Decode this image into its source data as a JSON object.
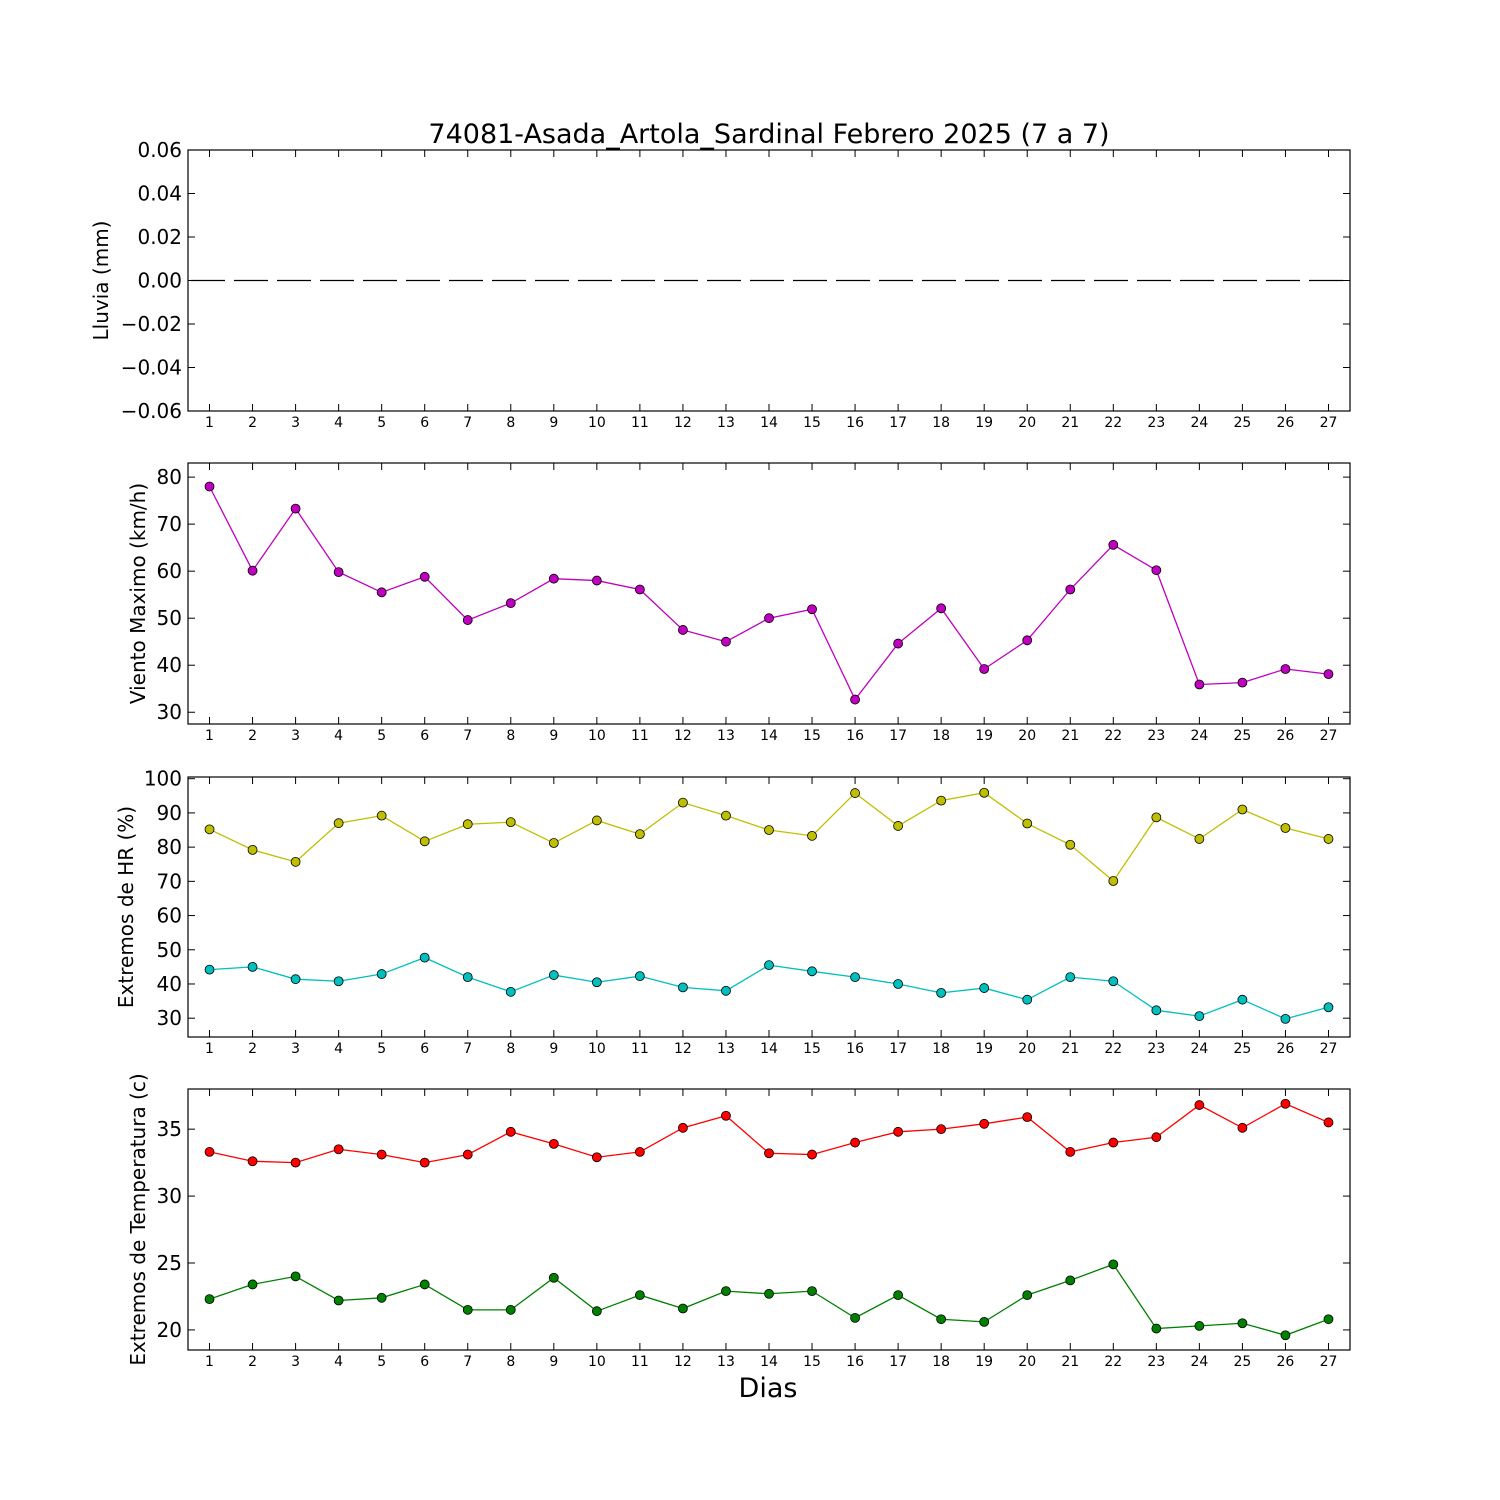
{
  "chart_data": [
    {
      "type": "line",
      "title": "74081-Asada_Artola_Sardinal Febrero 2025  (7 a 7)",
      "ylabel": "Lluvia (mm)",
      "xlabel": "",
      "x": [
        1,
        2,
        3,
        4,
        5,
        6,
        7,
        8,
        9,
        10,
        11,
        12,
        13,
        14,
        15,
        16,
        17,
        18,
        19,
        20,
        21,
        22,
        23,
        24,
        25,
        26,
        27
      ],
      "xlim": [
        0.5,
        27.5
      ],
      "ylim": [
        -0.06,
        0.06
      ],
      "yticks": [
        -0.06,
        -0.04,
        -0.02,
        0.0,
        0.02,
        0.04,
        0.06
      ],
      "ytick_labels": [
        "−0.06",
        "−0.04",
        "−0.02",
        "0.00",
        "0.02",
        "0.04",
        "0.06"
      ],
      "series": [
        {
          "style": "dashed",
          "color": "#000000",
          "values": [
            0,
            0,
            0,
            0,
            0,
            0,
            0,
            0,
            0,
            0,
            0,
            0,
            0,
            0,
            0,
            0,
            0,
            0,
            0,
            0,
            0,
            0,
            0,
            0,
            0,
            0,
            0
          ]
        }
      ]
    },
    {
      "type": "line",
      "title": "",
      "ylabel": "Viento Maximo (km/h)",
      "xlabel": "",
      "x": [
        1,
        2,
        3,
        4,
        5,
        6,
        7,
        8,
        9,
        10,
        11,
        12,
        13,
        14,
        15,
        16,
        17,
        18,
        19,
        20,
        21,
        22,
        23,
        24,
        25,
        26,
        27
      ],
      "xlim": [
        0.5,
        27.5
      ],
      "ylim": [
        27.5,
        83
      ],
      "yticks": [
        30,
        40,
        50,
        60,
        70,
        80
      ],
      "ytick_labels": [
        "30",
        "40",
        "50",
        "60",
        "70",
        "80"
      ],
      "series": [
        {
          "color": "#bf00bf",
          "marker": "circle",
          "values": [
            78.0,
            60.1,
            73.3,
            59.8,
            55.5,
            58.8,
            49.6,
            53.2,
            58.4,
            58.0,
            56.1,
            47.5,
            45.0,
            50.0,
            51.9,
            32.7,
            44.6,
            52.1,
            39.2,
            45.3,
            56.1,
            65.6,
            60.2,
            35.9,
            36.3,
            39.2,
            38.1
          ]
        }
      ]
    },
    {
      "type": "line",
      "title": "",
      "ylabel": "Extremos de HR (%)",
      "xlabel": "",
      "x": [
        1,
        2,
        3,
        4,
        5,
        6,
        7,
        8,
        9,
        10,
        11,
        12,
        13,
        14,
        15,
        16,
        17,
        18,
        19,
        20,
        21,
        22,
        23,
        24,
        25,
        26,
        27
      ],
      "xlim": [
        0.5,
        27.5
      ],
      "ylim": [
        24.5,
        100.5
      ],
      "yticks": [
        30,
        40,
        50,
        60,
        70,
        80,
        90,
        100
      ],
      "ytick_labels": [
        "30",
        "40",
        "50",
        "60",
        "70",
        "80",
        "90",
        "100"
      ],
      "series": [
        {
          "color": "#bfbf00",
          "marker": "circle",
          "values": [
            85.2,
            79.2,
            75.7,
            87.0,
            89.2,
            81.7,
            86.7,
            87.3,
            81.2,
            87.8,
            83.8,
            93.0,
            89.2,
            85.0,
            83.3,
            95.8,
            86.2,
            93.6,
            95.9,
            86.9,
            80.7,
            70.1,
            88.7,
            82.4,
            91.0,
            85.6,
            82.4
          ]
        },
        {
          "color": "#00bfbf",
          "marker": "circle",
          "values": [
            44.2,
            45.0,
            41.4,
            40.8,
            42.9,
            47.7,
            42.0,
            37.7,
            42.6,
            40.5,
            42.3,
            39.0,
            38.0,
            45.5,
            43.7,
            42.0,
            40.0,
            37.4,
            38.8,
            35.4,
            42.0,
            40.8,
            32.3,
            30.6,
            35.4,
            29.8,
            33.2
          ]
        }
      ]
    },
    {
      "type": "line",
      "title": "",
      "ylabel": "Extremos de Temperatura (c)",
      "xlabel": "Dias",
      "x": [
        1,
        2,
        3,
        4,
        5,
        6,
        7,
        8,
        9,
        10,
        11,
        12,
        13,
        14,
        15,
        16,
        17,
        18,
        19,
        20,
        21,
        22,
        23,
        24,
        25,
        26,
        27
      ],
      "xlim": [
        0.5,
        27.5
      ],
      "ylim": [
        18.5,
        38
      ],
      "yticks": [
        20,
        25,
        30,
        35
      ],
      "ytick_labels": [
        "20",
        "25",
        "30",
        "35"
      ],
      "series": [
        {
          "color": "#ff0000",
          "marker": "circle",
          "values": [
            33.3,
            32.6,
            32.5,
            33.5,
            33.1,
            32.5,
            33.1,
            34.8,
            33.9,
            32.9,
            33.3,
            35.1,
            36.0,
            33.2,
            33.1,
            34.0,
            34.8,
            35.0,
            35.4,
            35.9,
            33.3,
            34.0,
            34.4,
            36.8,
            35.1,
            36.9,
            35.5
          ]
        },
        {
          "color": "#008000",
          "marker": "circle",
          "values": [
            22.3,
            23.4,
            24.0,
            22.2,
            22.4,
            23.4,
            21.5,
            21.5,
            23.9,
            21.4,
            22.6,
            21.6,
            22.9,
            22.7,
            22.9,
            20.9,
            22.6,
            20.8,
            20.6,
            22.6,
            23.7,
            24.9,
            20.1,
            20.3,
            20.5,
            19.6,
            20.8
          ]
        }
      ]
    }
  ]
}
